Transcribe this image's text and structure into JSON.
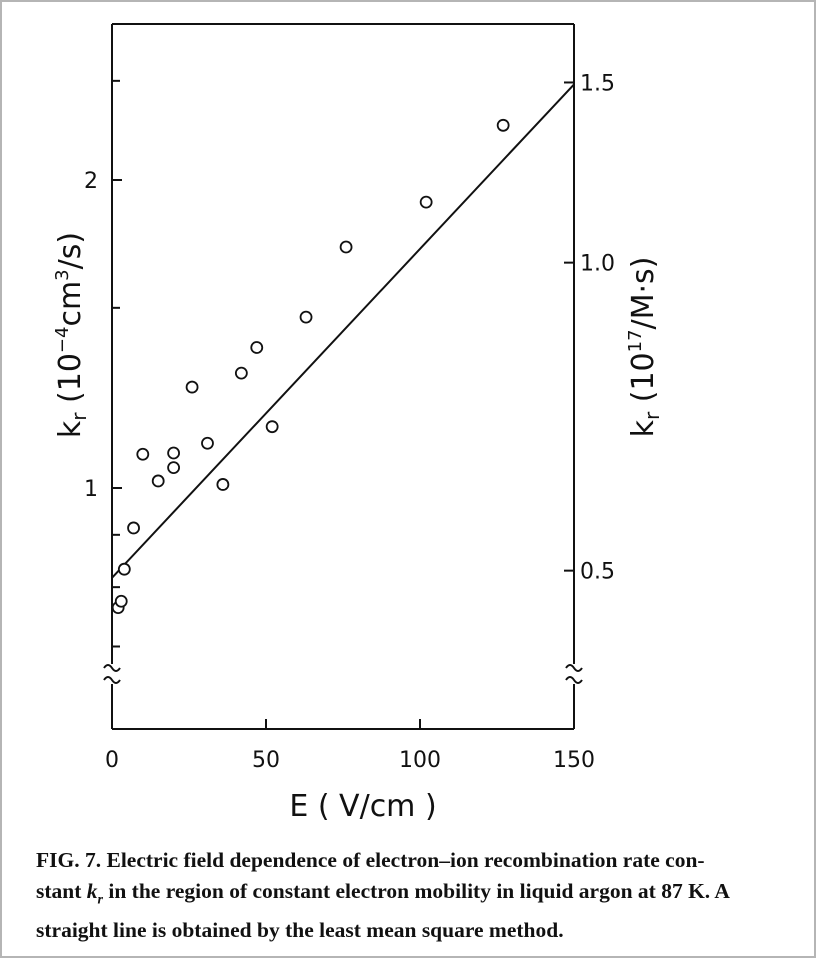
{
  "caption": {
    "lead": "FIG. 7. Electric field dependence of electron–ion recombination rate con-",
    "line2_pre": "stant ",
    "line2_k": "k",
    "line2_sub": "r",
    "line2_post": " in the region of constant electron mobility in liquid argon at 87 K. A",
    "line3": "straight line is obtained by the least mean square method."
  },
  "chart_data": {
    "type": "scatter",
    "x_axis": {
      "label_text": "E ( V/cm )",
      "range": [
        0,
        150
      ],
      "ticks": [
        0,
        50,
        100,
        150
      ],
      "tick_labels": [
        "0",
        "50",
        "100",
        "150"
      ]
    },
    "y_axis_left": {
      "label_text": "kr (10⁻⁴cm³/s)",
      "scale": "log",
      "range": [
        0.65,
        2.5
      ],
      "labeled_ticks": [
        1,
        2
      ],
      "tick_labels": [
        "1",
        "2"
      ],
      "minor_ticks": [
        0.7,
        0.8,
        0.9,
        1.5,
        2.5
      ],
      "axis_break": true
    },
    "y_axis_right": {
      "label_text": "kr (10¹⁷/M·s)",
      "scale": "log",
      "labeled_ticks": [
        0.5,
        1.0,
        1.5
      ],
      "tick_labels": [
        "0.5",
        "1.0",
        "1.5"
      ],
      "axis_break": true
    },
    "series": [
      {
        "marker": "open-circle",
        "x": [
          2,
          3,
          4,
          7,
          10,
          15,
          20,
          20,
          26,
          31,
          36,
          42,
          47,
          52,
          63,
          76,
          102,
          127
        ],
        "y": [
          0.764,
          0.775,
          0.833,
          0.914,
          1.079,
          1.016,
          1.047,
          1.082,
          1.255,
          1.106,
          1.008,
          1.295,
          1.372,
          1.148,
          1.469,
          1.72,
          1.903,
          2.262
        ]
      }
    ],
    "fit_line": {
      "type": "least-squares",
      "x": [
        0,
        150
      ],
      "y": [
        0.817,
        2.48
      ]
    },
    "grid": false,
    "legend": "none"
  }
}
